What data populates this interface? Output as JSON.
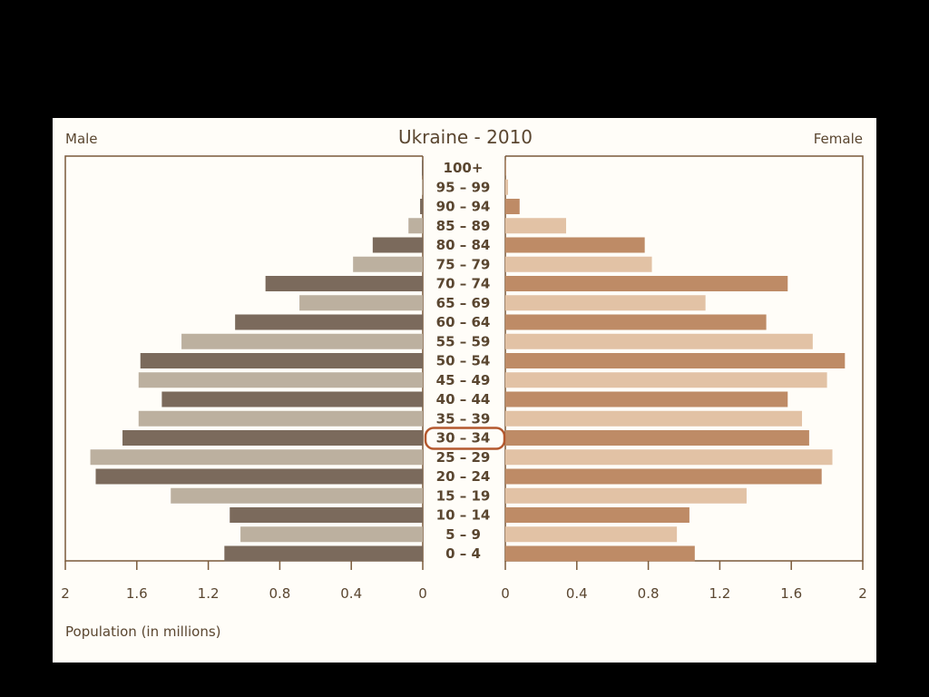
{
  "chart_data": {
    "type": "bar",
    "subtype": "population-pyramid",
    "title": "Ukraine - 2010",
    "left_label": "Male",
    "right_label": "Female",
    "xlabel": "Population (in millions)",
    "xlim": [
      0,
      2
    ],
    "ticks": [
      0,
      0.4,
      0.8,
      1.2,
      1.6,
      2
    ],
    "tick_labels": [
      "0",
      "0.4",
      "0.8",
      "1.2",
      "1.6",
      "2"
    ],
    "highlighted_category": "30 – 34",
    "categories": [
      "100+",
      "95 – 99",
      "90 – 94",
      "85 – 89",
      "80 – 84",
      "75 – 79",
      "70 – 74",
      "65 – 69",
      "60 – 64",
      "55 – 59",
      "50 – 54",
      "45 – 49",
      "40 – 44",
      "35 – 39",
      "30 – 34",
      "25 – 29",
      "20 – 24",
      "15 – 19",
      "10 – 14",
      "5 – 9",
      "0 – 4"
    ],
    "series": [
      {
        "name": "Male",
        "values": [
          0.005,
          0.003,
          0.015,
          0.08,
          0.28,
          0.39,
          0.88,
          0.69,
          1.05,
          1.35,
          1.58,
          1.59,
          1.46,
          1.59,
          1.68,
          1.86,
          1.83,
          1.41,
          1.08,
          1.02,
          1.11
        ]
      },
      {
        "name": "Female",
        "values": [
          0.003,
          0.015,
          0.08,
          0.34,
          0.78,
          0.82,
          1.58,
          1.12,
          1.46,
          1.72,
          1.9,
          1.8,
          1.58,
          1.66,
          1.7,
          1.83,
          1.77,
          1.35,
          1.03,
          0.96,
          1.06
        ]
      }
    ],
    "colors": {
      "male_dark": "#7b6a5c",
      "male_light": "#bcb09f",
      "female_dark": "#be8b66",
      "female_light": "#e2c2a5",
      "text": "#5a4630",
      "frame": "#7a5a3a",
      "highlight": "#b4582e",
      "panel": "#fffdf8"
    }
  }
}
